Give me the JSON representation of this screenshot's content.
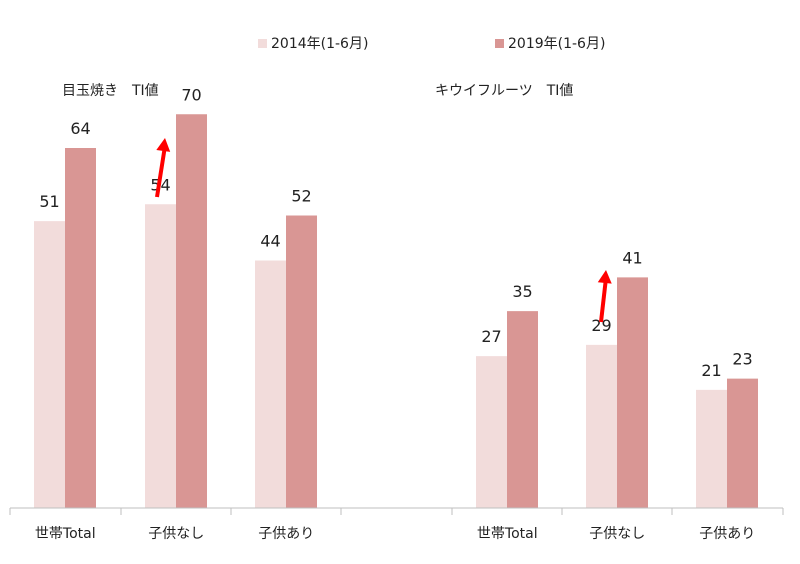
{
  "chart_data": {
    "type": "bar",
    "legend_position": "top",
    "ylim": [
      0,
      80
    ],
    "grid": false,
    "series": [
      {
        "name": "2014年(1-6月)",
        "color": "#f2dcdb"
      },
      {
        "name": "2019年(1-6月)",
        "color": "#d99694"
      }
    ],
    "groups": [
      {
        "title": "目玉焼き　TI値",
        "categories": [
          "世帯Total",
          "子供なし",
          "子供あり"
        ],
        "values_2014": [
          51,
          54,
          44
        ],
        "values_2019": [
          64,
          70,
          52
        ]
      },
      {
        "title": "キウイフルーツ　TI値",
        "categories": [
          "世帯Total",
          "子供なし",
          "子供あり"
        ],
        "values_2014": [
          27,
          29,
          21
        ],
        "values_2019": [
          35,
          41,
          23
        ]
      }
    ],
    "annotations": [
      {
        "type": "arrow",
        "color": "#ff0000",
        "group": 0,
        "category": 1
      },
      {
        "type": "arrow",
        "color": "#ff0000",
        "group": 1,
        "category": 1
      }
    ]
  }
}
